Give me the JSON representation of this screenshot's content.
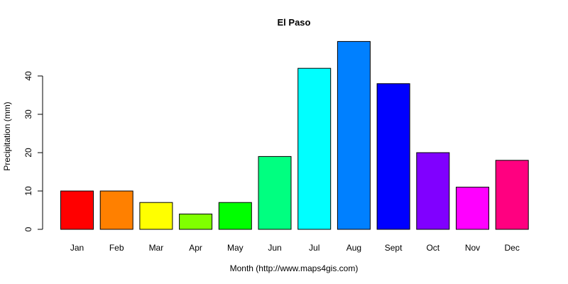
{
  "chart_data": {
    "type": "bar",
    "title": "El Paso",
    "xlabel": "Month (http://www.maps4gis.com)",
    "ylabel": "Precipitation (mm)",
    "categories": [
      "Jan",
      "Feb",
      "Mar",
      "Apr",
      "May",
      "Jun",
      "Jul",
      "Aug",
      "Sept",
      "Oct",
      "Nov",
      "Dec"
    ],
    "values": [
      10,
      10,
      7,
      4,
      7,
      19,
      42,
      49,
      38,
      20,
      11,
      18
    ],
    "colors": [
      "#FF0000",
      "#FF8000",
      "#FFFF00",
      "#80FF00",
      "#00FF00",
      "#00FF80",
      "#00FFFF",
      "#0080FF",
      "#0000FF",
      "#8000FF",
      "#FF00FF",
      "#FF0080"
    ],
    "yticks": [
      0,
      10,
      20,
      30,
      40
    ],
    "ylim": [
      0,
      49
    ],
    "grid": false,
    "legend": "none"
  }
}
